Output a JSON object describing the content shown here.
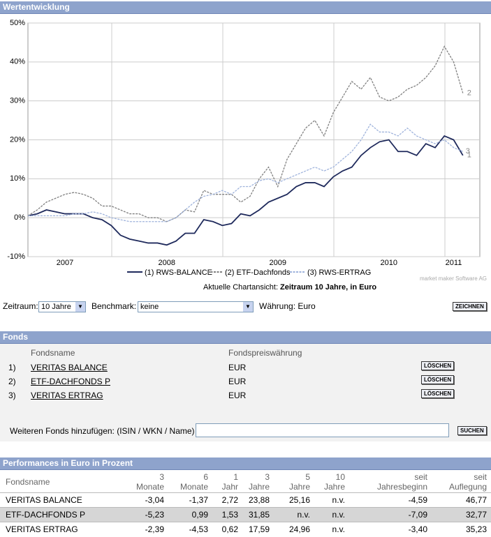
{
  "header": {
    "title": "Wertentwicklung"
  },
  "chart_data": {
    "type": "line",
    "categories": [
      null,
      null,
      null,
      null,
      "2007",
      null,
      null,
      null,
      null,
      null,
      null,
      null,
      null,
      null,
      null,
      "2008",
      null,
      null,
      null,
      null,
      null,
      null,
      null,
      null,
      null,
      null,
      null,
      "2009",
      null,
      null,
      null,
      null,
      null,
      null,
      null,
      null,
      null,
      null,
      null,
      "2010",
      null,
      null,
      null,
      null,
      null,
      null,
      "2011",
      null
    ],
    "series": [
      {
        "name": "(1) RWS-BALANCE",
        "color": "#1f2a5c",
        "style": "solid",
        "end_label": "1",
        "values": [
          0.5,
          1,
          2,
          1.5,
          1,
          1,
          1,
          0,
          -0.5,
          -2,
          -4.5,
          -5.5,
          -6,
          -6.5,
          -6.5,
          -7,
          -6,
          -4,
          -4,
          -0.5,
          -1,
          -2,
          -1.5,
          1,
          0.5,
          2,
          4,
          5,
          6,
          8,
          9,
          9,
          8,
          10.5,
          12,
          13,
          16,
          18,
          19.5,
          20,
          17,
          17,
          16,
          19,
          18,
          21,
          20,
          16
        ]
      },
      {
        "name": "(2) ETF-Dachfonds",
        "color": "#808080",
        "style": "dashed",
        "end_label": "2",
        "values": [
          0.5,
          2,
          4,
          5,
          6,
          6.5,
          6,
          5,
          3,
          3,
          2,
          1,
          1,
          0,
          0,
          -1,
          0,
          2,
          1.5,
          7,
          6,
          6,
          6,
          4,
          5.5,
          10,
          13,
          8,
          15,
          19,
          23,
          25,
          21,
          27,
          31,
          35,
          33,
          36,
          31,
          30,
          31,
          33,
          34,
          36,
          39,
          44,
          40,
          32
        ]
      },
      {
        "name": "(3) RWS-ERTRAG",
        "color": "#9fb3dc",
        "style": "dashed",
        "end_label": "3",
        "values": [
          0.5,
          0.5,
          0.5,
          0.5,
          0.5,
          1,
          1,
          1.5,
          1,
          0,
          -0.5,
          -1,
          -1,
          -1,
          -1,
          -1,
          0,
          2,
          4,
          5.5,
          6,
          7,
          6,
          8,
          8,
          9.5,
          10,
          9,
          10,
          11,
          12,
          13,
          12,
          13,
          15,
          17,
          20,
          24,
          22,
          22,
          21,
          23,
          21,
          20,
          19,
          20,
          18,
          17
        ]
      }
    ],
    "ylim": [
      -10,
      50
    ],
    "yticks": [
      {
        "value": -10,
        "label": "-10%"
      },
      {
        "value": 0,
        "label": "0%"
      },
      {
        "value": 10,
        "label": "10%"
      },
      {
        "value": 20,
        "label": "20%"
      },
      {
        "value": 30,
        "label": "30%"
      },
      {
        "value": 40,
        "label": "40%"
      },
      {
        "value": 50,
        "label": "50%"
      }
    ],
    "grid": true,
    "credit": "market maker Software AG",
    "caption_prefix": "Aktuelle Chartansicht:",
    "caption": "Zeitraum 10 Jahre, in Euro"
  },
  "controls": {
    "zeitraum_label": "Zeitraum:",
    "zeitraum": "10 Jahre",
    "benchmark_label": "Benchmark:",
    "benchmark": "keine",
    "waehrung": "Währung: Euro",
    "draw_button": "ZEICHNEN"
  },
  "fonds": {
    "title": "Fonds",
    "columns": [
      "Fondsname",
      "Fondspreiswährung"
    ],
    "rows": [
      {
        "num": "1)",
        "name": "VERITAS BALANCE",
        "currency": "EUR",
        "button": "LÖSCHEN"
      },
      {
        "num": "2)",
        "name": "ETF-DACHFONDS P",
        "currency": "EUR",
        "button": "LÖSCHEN"
      },
      {
        "num": "3)",
        "name": "VERITAS ERTRAG",
        "currency": "EUR",
        "button": "LÖSCHEN"
      }
    ],
    "add_label": "Weiteren Fonds hinzufügen: (ISIN / WKN / Name)",
    "search_button": "SUCHEN"
  },
  "performance": {
    "title": "Performances in Euro in Prozent",
    "columns": [
      [
        "Fondsname"
      ],
      [
        "3",
        "Monate"
      ],
      [
        "6",
        "Monate"
      ],
      [
        "1",
        "Jahr"
      ],
      [
        "3",
        "Jahre"
      ],
      [
        "5",
        "Jahre"
      ],
      [
        "10",
        "Jahre"
      ],
      [
        "seit",
        "Jahresbeginn"
      ],
      [
        "seit",
        "Auflegung"
      ]
    ],
    "rows": [
      [
        "VERITAS BALANCE",
        "-3,04",
        "-1,37",
        "2,72",
        "23,88",
        "25,16",
        "n.v.",
        "-4,59",
        "46,77"
      ],
      [
        "ETF-DACHFONDS P",
        "-5,23",
        "0,99",
        "1,53",
        "31,85",
        "n.v.",
        "n.v.",
        "-7,09",
        "32,77"
      ],
      [
        "VERITAS ERTRAG",
        "-2,39",
        "-4,53",
        "0,62",
        "17,59",
        "24,96",
        "n.v.",
        "-3,40",
        "35,23"
      ]
    ]
  }
}
